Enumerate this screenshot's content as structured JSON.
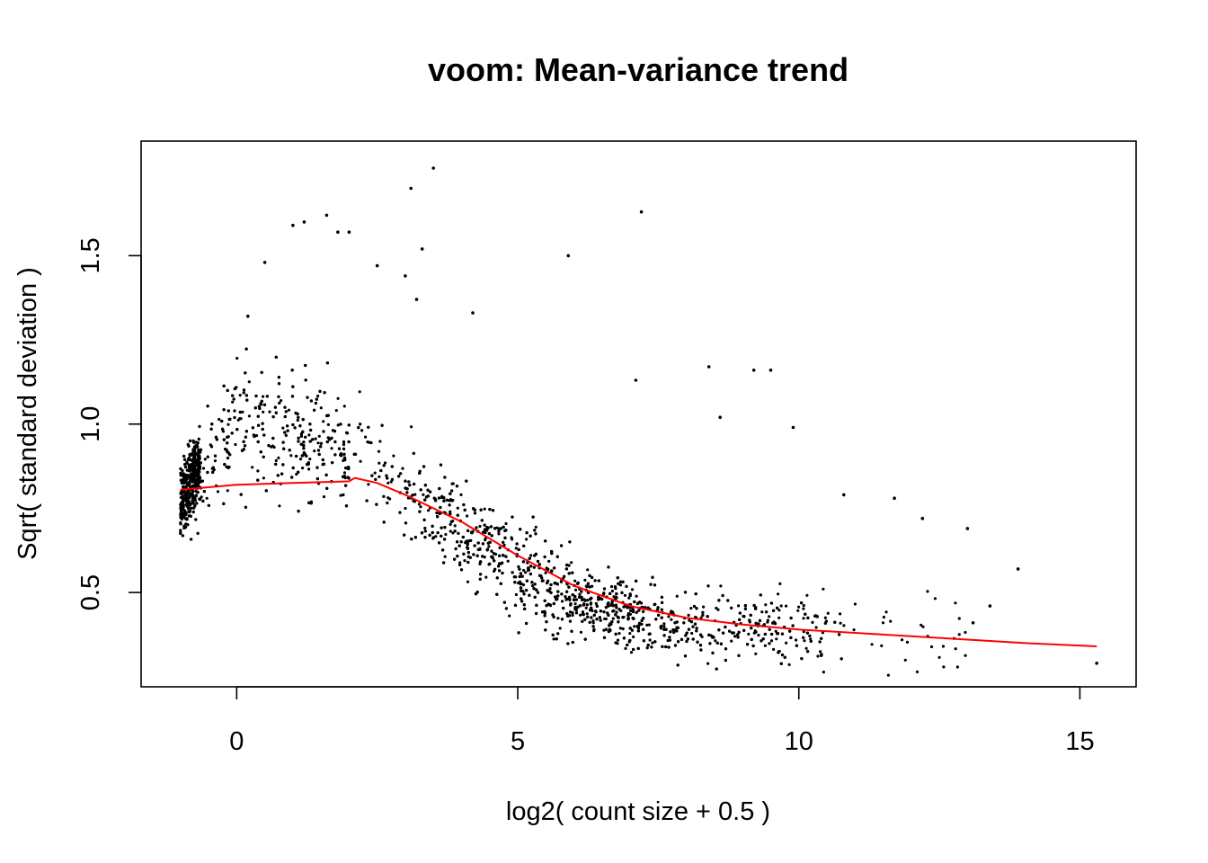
{
  "chart_data": {
    "type": "scatter",
    "title": "voom: Mean-variance trend",
    "xlabel": "log2( count size + 0.5 )",
    "ylabel": "Sqrt( standard deviation )",
    "xlim": [
      -1.7,
      16.0
    ],
    "ylim": [
      0.22,
      1.84
    ],
    "x_ticks": [
      {
        "value": 0,
        "label": "0"
      },
      {
        "value": 5,
        "label": "5"
      },
      {
        "value": 10,
        "label": "10"
      },
      {
        "value": 15,
        "label": "15"
      }
    ],
    "y_ticks": [
      {
        "value": 0.5,
        "label": "0.5"
      },
      {
        "value": 1.0,
        "label": "1.0"
      },
      {
        "value": 1.5,
        "label": "1.5"
      }
    ],
    "grid": false,
    "legend": "none",
    "trend_line": {
      "color": "#ff0000",
      "x": [
        -1.0,
        0.0,
        1.0,
        2.0,
        2.1,
        2.5,
        3.0,
        4.0,
        5.0,
        6.0,
        7.0,
        8.0,
        9.0,
        10.0,
        11.0,
        12.0,
        13.0,
        14.0,
        15.3
      ],
      "y": [
        0.805,
        0.82,
        0.825,
        0.83,
        0.84,
        0.825,
        0.79,
        0.71,
        0.61,
        0.52,
        0.46,
        0.425,
        0.405,
        0.39,
        0.38,
        0.37,
        0.36,
        0.35,
        0.34
      ]
    },
    "points_color": "#000000",
    "sample_points": [
      {
        "x": 3.5,
        "y": 1.76
      },
      {
        "x": 3.1,
        "y": 1.7
      },
      {
        "x": 7.2,
        "y": 1.63
      },
      {
        "x": 1.6,
        "y": 1.62
      },
      {
        "x": 1.2,
        "y": 1.6
      },
      {
        "x": 1.0,
        "y": 1.59
      },
      {
        "x": 1.8,
        "y": 1.57
      },
      {
        "x": 2.0,
        "y": 1.57
      },
      {
        "x": 3.3,
        "y": 1.52
      },
      {
        "x": 5.9,
        "y": 1.5
      },
      {
        "x": 0.5,
        "y": 1.48
      },
      {
        "x": 2.5,
        "y": 1.47
      },
      {
        "x": 3.0,
        "y": 1.44
      },
      {
        "x": 4.2,
        "y": 1.33
      },
      {
        "x": 3.2,
        "y": 1.37
      },
      {
        "x": 0.2,
        "y": 1.32
      },
      {
        "x": 7.1,
        "y": 1.13
      },
      {
        "x": 8.4,
        "y": 1.17
      },
      {
        "x": 9.2,
        "y": 1.16
      },
      {
        "x": 9.5,
        "y": 1.16
      },
      {
        "x": 8.6,
        "y": 1.02
      },
      {
        "x": 9.9,
        "y": 0.99
      },
      {
        "x": 10.8,
        "y": 0.79
      },
      {
        "x": 11.7,
        "y": 0.78
      },
      {
        "x": 12.2,
        "y": 0.72
      },
      {
        "x": 13.0,
        "y": 0.69
      },
      {
        "x": 13.9,
        "y": 0.57
      },
      {
        "x": 13.4,
        "y": 0.46
      },
      {
        "x": 13.1,
        "y": 0.41
      },
      {
        "x": 15.3,
        "y": 0.29
      }
    ]
  }
}
